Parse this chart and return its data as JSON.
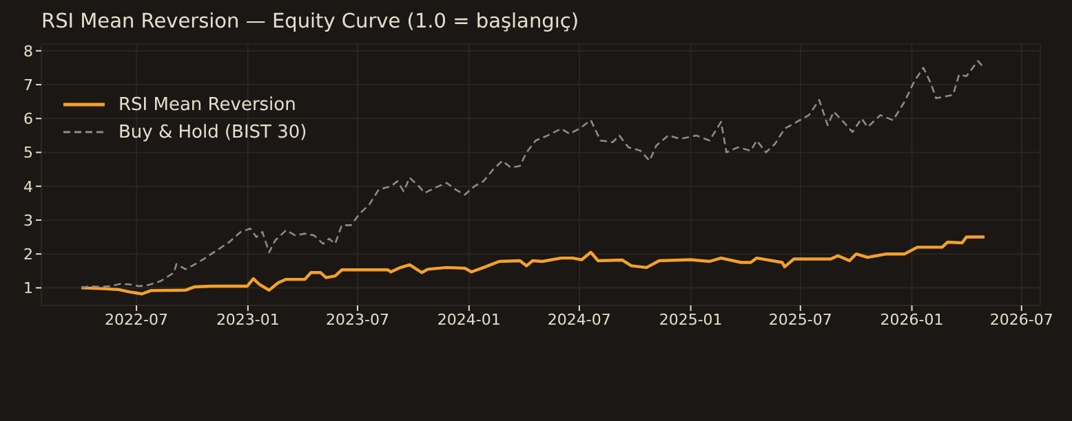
{
  "chart_data": {
    "type": "line",
    "title": "RSI Mean Reversion — Equity Curve (1.0 = başlangıç)",
    "xlim": [
      "2022-01-25",
      "2026-08-01"
    ],
    "xticks": [
      "2022-07",
      "2023-01",
      "2023-07",
      "2024-01",
      "2024-07",
      "2025-01",
      "2025-07",
      "2026-01",
      "2026-07"
    ],
    "ylim": [
      0.48,
      8.2
    ],
    "yticks": [
      1,
      2,
      3,
      4,
      5,
      6,
      7,
      8
    ],
    "grid": true,
    "legend": "top left",
    "marker": "none",
    "series": [
      {
        "name": "RSI Mean Reversion",
        "color": "#f5a02a",
        "line_style": "solid",
        "x": [
          "2022-04-01",
          "2022-05-01",
          "2022-06-01",
          "2022-06-20",
          "2022-07-10",
          "2022-07-25",
          "2022-09-20",
          "2022-10-05",
          "2022-11-01",
          "2022-12-31",
          "2023-01-10",
          "2023-01-20",
          "2023-02-05",
          "2023-02-20",
          "2023-03-05",
          "2023-04-05",
          "2023-04-15",
          "2023-05-01",
          "2023-05-10",
          "2023-05-25",
          "2023-06-05",
          "2023-08-20",
          "2023-08-25",
          "2023-09-10",
          "2023-09-25",
          "2023-10-15",
          "2023-10-25",
          "2023-11-25",
          "2023-12-25",
          "2024-01-05",
          "2024-01-25",
          "2024-02-20",
          "2024-03-25",
          "2024-04-05",
          "2024-04-15",
          "2024-05-01",
          "2024-06-01",
          "2024-06-20",
          "2024-07-05",
          "2024-07-20",
          "2024-08-01",
          "2024-09-10",
          "2024-09-25",
          "2024-10-20",
          "2024-11-10",
          "2025-01-01",
          "2025-02-01",
          "2025-02-20",
          "2025-03-25",
          "2025-04-10",
          "2025-04-20",
          "2025-06-01",
          "2025-06-05",
          "2025-06-20",
          "2025-08-20",
          "2025-09-01",
          "2025-09-20",
          "2025-10-01",
          "2025-10-20",
          "2025-11-20",
          "2025-12-20",
          "2026-01-10",
          "2026-02-20",
          "2026-03-01",
          "2026-03-25",
          "2026-04-01",
          "2026-05-01"
        ],
        "values": [
          1.0,
          0.98,
          0.95,
          0.88,
          0.82,
          0.92,
          0.93,
          1.03,
          1.05,
          1.05,
          1.27,
          1.1,
          0.93,
          1.15,
          1.25,
          1.25,
          1.45,
          1.45,
          1.3,
          1.35,
          1.53,
          1.53,
          1.47,
          1.6,
          1.68,
          1.45,
          1.55,
          1.6,
          1.58,
          1.47,
          1.6,
          1.78,
          1.8,
          1.65,
          1.8,
          1.78,
          1.88,
          1.88,
          1.83,
          2.05,
          1.8,
          1.82,
          1.65,
          1.6,
          1.8,
          1.83,
          1.78,
          1.88,
          1.75,
          1.75,
          1.88,
          1.75,
          1.62,
          1.85,
          1.85,
          1.95,
          1.8,
          2.0,
          1.9,
          2.0,
          2.0,
          2.2,
          2.2,
          2.35,
          2.33,
          2.5,
          2.5
        ]
      },
      {
        "name": "Buy & Hold (BIST 30)",
        "color": "#8c8c8c",
        "line_style": "dashed",
        "x": [
          "2022-04-01",
          "2022-04-15",
          "2022-05-01",
          "2022-05-20",
          "2022-06-05",
          "2022-06-20",
          "2022-07-05",
          "2022-07-20",
          "2022-08-10",
          "2022-09-01",
          "2022-09-05",
          "2022-09-20",
          "2022-10-01",
          "2022-10-20",
          "2022-11-10",
          "2022-12-01",
          "2022-12-20",
          "2023-01-05",
          "2023-01-15",
          "2023-01-25",
          "2023-02-05",
          "2023-02-15",
          "2023-03-05",
          "2023-03-20",
          "2023-04-05",
          "2023-04-20",
          "2023-05-05",
          "2023-05-15",
          "2023-05-25",
          "2023-06-05",
          "2023-06-20",
          "2023-07-05",
          "2023-07-20",
          "2023-08-05",
          "2023-08-25",
          "2023-09-05",
          "2023-09-15",
          "2023-09-25",
          "2023-10-10",
          "2023-10-20",
          "2023-11-05",
          "2023-11-25",
          "2023-12-10",
          "2023-12-25",
          "2024-01-10",
          "2024-01-25",
          "2024-02-10",
          "2024-02-25",
          "2024-03-10",
          "2024-03-25",
          "2024-04-05",
          "2024-04-20",
          "2024-05-10",
          "2024-06-01",
          "2024-06-15",
          "2024-07-01",
          "2024-07-20",
          "2024-08-05",
          "2024-08-25",
          "2024-09-05",
          "2024-09-20",
          "2024-10-10",
          "2024-10-25",
          "2024-11-05",
          "2024-11-25",
          "2024-12-15",
          "2025-01-10",
          "2025-02-01",
          "2025-02-20",
          "2025-03-01",
          "2025-03-20",
          "2025-04-10",
          "2025-04-20",
          "2025-05-05",
          "2025-05-20",
          "2025-06-05",
          "2025-06-25",
          "2025-07-15",
          "2025-08-01",
          "2025-08-15",
          "2025-08-25",
          "2025-09-10",
          "2025-09-25",
          "2025-10-10",
          "2025-10-20",
          "2025-11-10",
          "2025-12-01",
          "2025-12-20",
          "2026-01-05",
          "2026-01-20",
          "2026-02-01",
          "2026-02-10",
          "2026-02-25",
          "2026-03-10",
          "2026-03-20",
          "2026-04-01",
          "2026-04-20",
          "2026-04-30"
        ],
        "values": [
          1.0,
          1.05,
          1.03,
          1.05,
          1.12,
          1.1,
          1.05,
          1.08,
          1.2,
          1.45,
          1.7,
          1.55,
          1.65,
          1.85,
          2.1,
          2.35,
          2.65,
          2.75,
          2.5,
          2.65,
          2.05,
          2.4,
          2.7,
          2.55,
          2.6,
          2.55,
          2.3,
          2.45,
          2.3,
          2.85,
          2.85,
          3.2,
          3.45,
          3.9,
          4.0,
          4.15,
          3.85,
          4.25,
          4.0,
          3.8,
          3.95,
          4.1,
          3.9,
          3.75,
          4.0,
          4.15,
          4.5,
          4.75,
          4.55,
          4.6,
          5.0,
          5.35,
          5.5,
          5.7,
          5.55,
          5.7,
          5.95,
          5.35,
          5.3,
          5.5,
          5.15,
          5.05,
          4.75,
          5.2,
          5.5,
          5.4,
          5.5,
          5.35,
          5.9,
          5.0,
          5.15,
          5.05,
          5.35,
          5.0,
          5.25,
          5.7,
          5.9,
          6.1,
          6.55,
          5.8,
          6.2,
          5.9,
          5.6,
          6.0,
          5.75,
          6.1,
          5.95,
          6.5,
          7.1,
          7.5,
          7.05,
          6.6,
          6.65,
          6.7,
          7.3,
          7.25,
          7.7,
          7.5
        ]
      }
    ]
  }
}
